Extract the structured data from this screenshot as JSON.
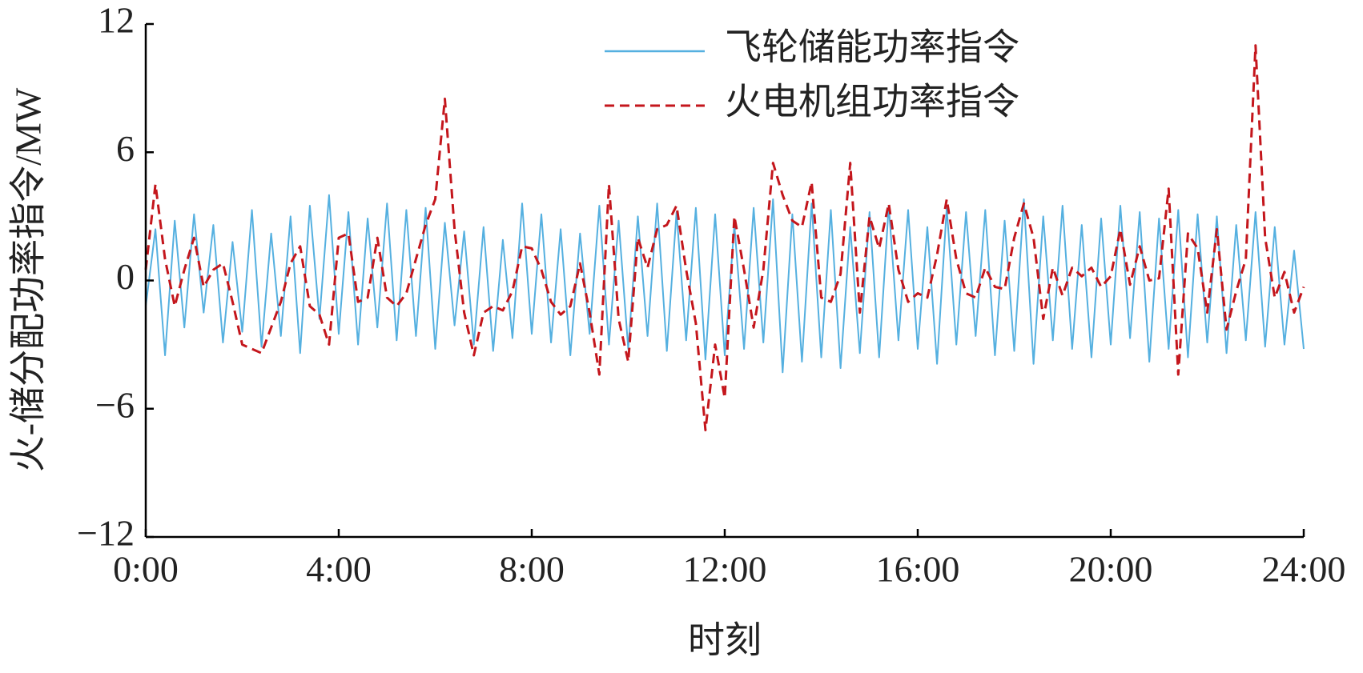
{
  "chart_data": {
    "type": "line",
    "xlabel": "时刻",
    "ylabel": "火-储分配功率指令/MW",
    "xlim": [
      0,
      24
    ],
    "xticks": [
      {
        "value": 0,
        "label": "0:00"
      },
      {
        "value": 4,
        "label": "4:00"
      },
      {
        "value": 8,
        "label": "8:00"
      },
      {
        "value": 12,
        "label": "12:00"
      },
      {
        "value": 16,
        "label": "16:00"
      },
      {
        "value": 20,
        "label": "20:00"
      },
      {
        "value": 24,
        "label": "24:00"
      }
    ],
    "ylim": [
      -12,
      12
    ],
    "yticks": [
      {
        "value": -12,
        "label": "−12"
      },
      {
        "value": -6,
        "label": "−6"
      },
      0,
      6,
      12
    ],
    "legend": "upper right",
    "x": [
      0,
      0.2,
      0.4,
      0.6,
      0.8,
      1,
      1.2,
      1.4,
      1.6,
      1.8,
      2,
      2.2,
      2.4,
      2.6,
      2.8,
      3,
      3.2,
      3.4,
      3.6,
      3.8,
      4,
      4.2,
      4.4,
      4.6,
      4.8,
      5,
      5.2,
      5.4,
      5.6,
      5.8,
      6,
      6.2,
      6.4,
      6.6,
      6.8,
      7,
      7.2,
      7.4,
      7.6,
      7.8,
      8,
      8.2,
      8.4,
      8.6,
      8.8,
      9,
      9.2,
      9.4,
      9.6,
      9.8,
      10,
      10.2,
      10.4,
      10.6,
      10.8,
      11,
      11.2,
      11.4,
      11.6,
      11.8,
      12,
      12.2,
      12.4,
      12.6,
      12.8,
      13,
      13.2,
      13.4,
      13.6,
      13.8,
      14,
      14.2,
      14.4,
      14.6,
      14.8,
      15,
      15.2,
      15.4,
      15.6,
      15.8,
      16,
      16.2,
      16.4,
      16.6,
      16.8,
      17,
      17.2,
      17.4,
      17.6,
      17.8,
      18,
      18.2,
      18.4,
      18.6,
      18.8,
      19,
      19.2,
      19.4,
      19.6,
      19.8,
      20,
      20.2,
      20.4,
      20.6,
      20.8,
      21,
      21.2,
      21.4,
      21.6,
      21.8,
      22,
      22.2,
      22.4,
      22.6,
      22.8,
      23,
      23.2,
      23.4,
      23.6,
      23.8,
      24
    ],
    "series": [
      {
        "name": "飞轮储能功率指令",
        "color": "#55b0e0",
        "dash": false,
        "values": [
          -1.2,
          2.4,
          -3.5,
          2.8,
          -2.2,
          3.1,
          -1.5,
          2.6,
          -2.9,
          1.8,
          -2.4,
          3.3,
          -3.1,
          2.2,
          -2.6,
          3,
          -3.4,
          3.5,
          -1.8,
          4,
          -2.5,
          3.2,
          -3,
          2.9,
          -2.2,
          3.6,
          -2.8,
          3.3,
          -2.6,
          3.4,
          -3.2,
          2.7,
          -2.1,
          2.3,
          -3,
          2.5,
          -3.3,
          1.9,
          -2.7,
          3.6,
          -2.5,
          3.1,
          -2.9,
          2.4,
          -3.5,
          2.2,
          -2.5,
          3.5,
          -3,
          2.8,
          -3.2,
          3,
          -2.6,
          3.6,
          -3.3,
          3.2,
          -2.8,
          3.4,
          -3.7,
          3.1,
          -3.5,
          2.6,
          -3.2,
          3.4,
          -2.9,
          3.8,
          -4.3,
          3.1,
          -3.8,
          3.6,
          -3.6,
          3.3,
          -4.1,
          2.5,
          -3.4,
          3.2,
          -3.6,
          3.5,
          -2.8,
          3.3,
          -3.2,
          2.5,
          -3.9,
          3.4,
          -3,
          3.2,
          -2.6,
          3.3,
          -3.5,
          2.8,
          -3.3,
          3.8,
          -3.9,
          3,
          -2.8,
          3.5,
          -3.2,
          2.6,
          -3.6,
          2.9,
          -3,
          3.5,
          -2.7,
          3.2,
          -3.8,
          2.9,
          -3.2,
          3.3,
          -3.6,
          3.1,
          -2.9,
          3,
          -3.4,
          2.6,
          -2.8,
          3.2,
          -3.1,
          2.5,
          -3,
          1.4,
          -3.2
        ]
      },
      {
        "name": "火电机组功率指令",
        "color": "#c4161c",
        "dash": true,
        "values": [
          0.5,
          4.5,
          1,
          -1.2,
          0.5,
          2,
          -0.3,
          0.5,
          0.8,
          -1,
          -3,
          -3.2,
          -3.4,
          -2.2,
          -1,
          0.8,
          1.6,
          -1.2,
          -1.6,
          -3,
          2,
          2.2,
          -1,
          -0.8,
          2,
          -0.8,
          -1.2,
          -0.6,
          1,
          2.6,
          3.8,
          8.5,
          2.4,
          -1.5,
          -3.5,
          -1.5,
          -1.2,
          -1.4,
          -0.5,
          1.6,
          1.5,
          0.5,
          -1,
          -1.6,
          -1.2,
          0.8,
          -1.5,
          -4.4,
          4.5,
          -1.8,
          -3.8,
          2,
          0.6,
          2.4,
          2.6,
          3.5,
          0.5,
          -2,
          -7,
          -3,
          -5.5,
          3,
          0.5,
          -2.2,
          0.5,
          5.5,
          4,
          2.8,
          2.5,
          4.6,
          -0.8,
          -1,
          0.3,
          5.5,
          -1.5,
          3,
          1.5,
          3.6,
          0.5,
          -1,
          -0.6,
          -0.8,
          1.2,
          3.8,
          1,
          -0.6,
          -0.8,
          0.6,
          -0.3,
          -0.4,
          2,
          3.6,
          2,
          -1.8,
          0.6,
          -0.7,
          0.6,
          0.2,
          0.6,
          -0.3,
          0.2,
          2.4,
          -0.2,
          1.6,
          0,
          0.1,
          4.3,
          -4.4,
          2.2,
          1.5,
          -1.5,
          2.4,
          -2.3,
          -0.5,
          1,
          11,
          2,
          -0.8,
          0.4,
          -1.5,
          -0.3
        ]
      }
    ]
  }
}
